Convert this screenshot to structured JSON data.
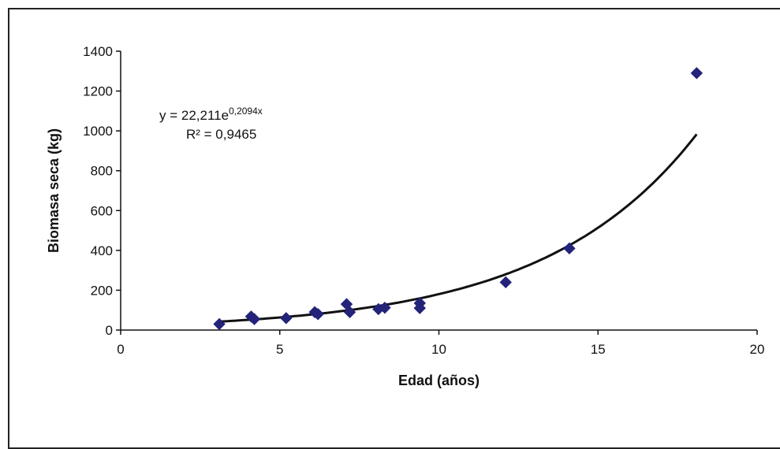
{
  "chart_data": {
    "type": "scatter",
    "xlabel": "Edad (años)",
    "ylabel": "Biomasa seca  (kg)",
    "xlim": [
      0,
      20
    ],
    "ylim": [
      0,
      1400
    ],
    "xticks": [
      0,
      5,
      10,
      15,
      20
    ],
    "yticks": [
      0,
      200,
      400,
      600,
      800,
      1000,
      1200,
      1400
    ],
    "grid": false,
    "series": [
      {
        "marker": "diamond",
        "color": "#23237a",
        "points": [
          {
            "x": 3.1,
            "y": 30
          },
          {
            "x": 4.1,
            "y": 68
          },
          {
            "x": 4.2,
            "y": 55
          },
          {
            "x": 5.2,
            "y": 60
          },
          {
            "x": 6.1,
            "y": 90
          },
          {
            "x": 6.2,
            "y": 80
          },
          {
            "x": 7.1,
            "y": 130
          },
          {
            "x": 7.2,
            "y": 90
          },
          {
            "x": 8.1,
            "y": 105
          },
          {
            "x": 8.3,
            "y": 112
          },
          {
            "x": 9.4,
            "y": 135
          },
          {
            "x": 9.4,
            "y": 110
          },
          {
            "x": 12.1,
            "y": 240
          },
          {
            "x": 14.1,
            "y": 410
          },
          {
            "x": 18.1,
            "y": 1290
          }
        ]
      }
    ],
    "trendline": {
      "type": "exponential",
      "a": 22.211,
      "b": 0.2094,
      "x_range": [
        3.1,
        18.1
      ],
      "color": "#111111",
      "equation_text": "y = 22,211e",
      "equation_exp": "0,2094x",
      "r2_text": "R² = 0,9465"
    }
  }
}
